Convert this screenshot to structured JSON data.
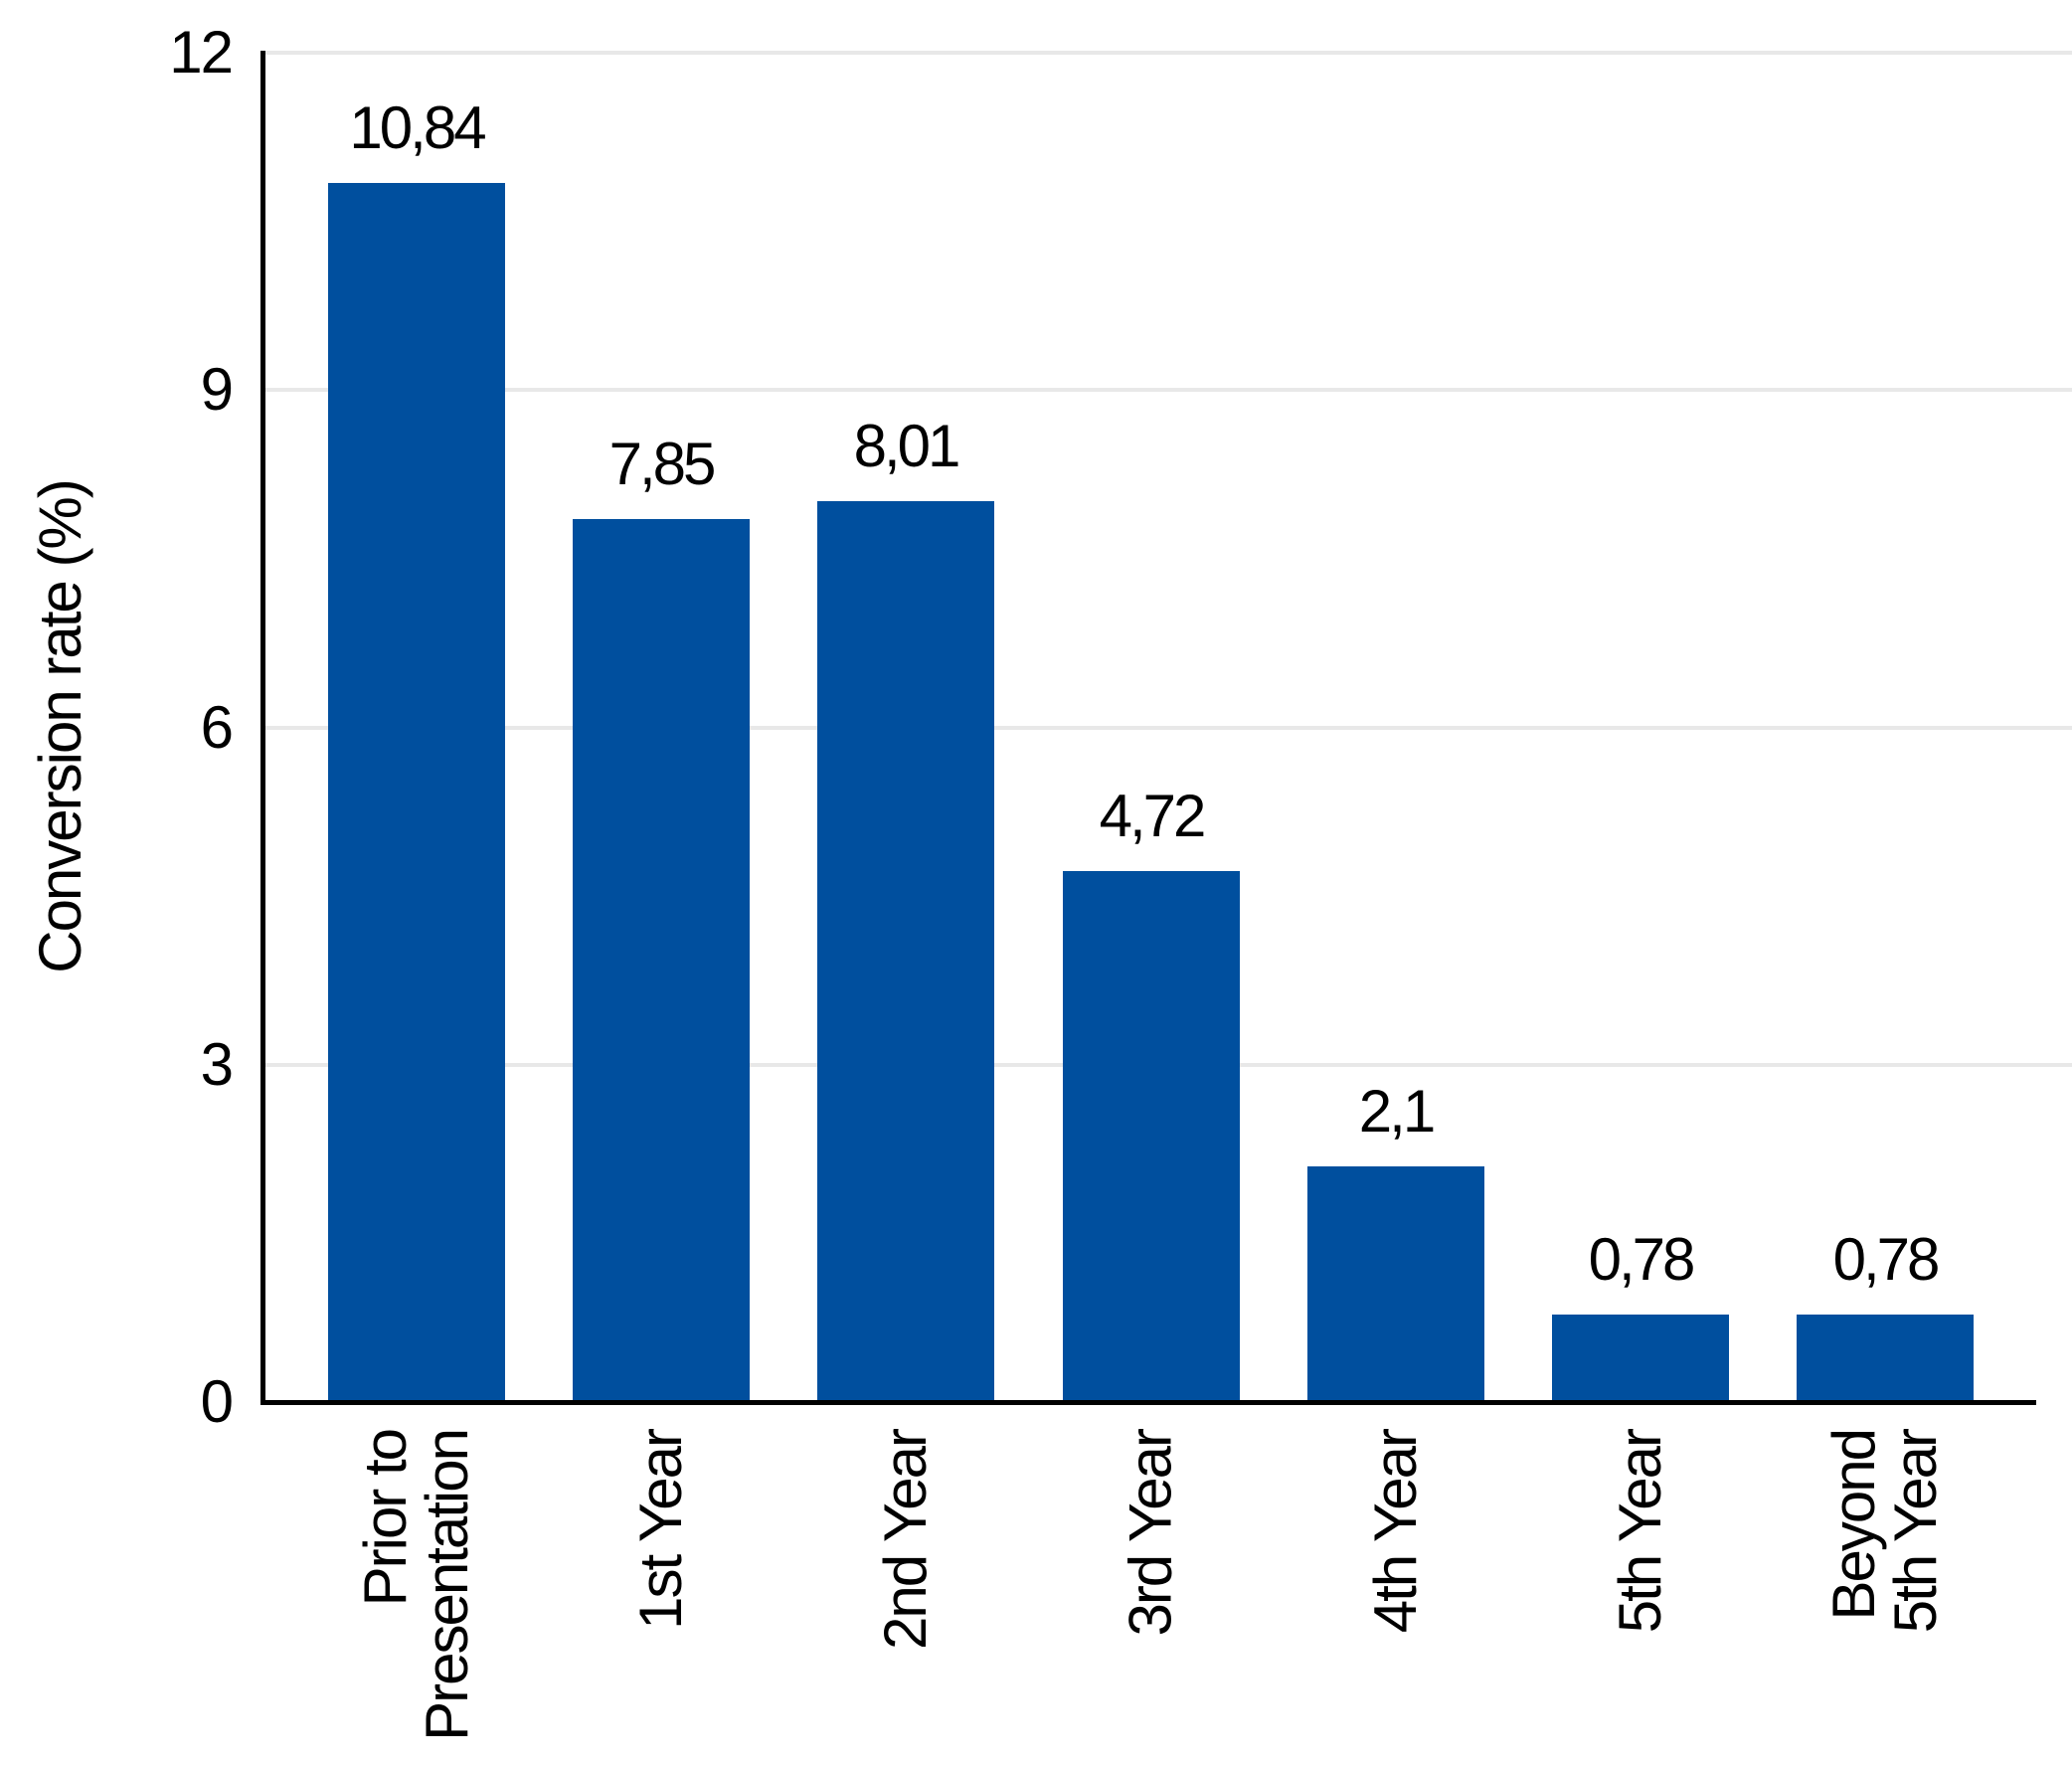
{
  "chart_data": {
    "type": "bar",
    "categories": [
      "Prior to\nPresentation",
      "1st Year",
      "2nd Year",
      "3rd Year",
      "4th Year",
      "5th Year",
      "Beyond\n5th Year"
    ],
    "values": [
      10.84,
      7.85,
      8.01,
      4.72,
      2.1,
      0.78,
      0.78
    ],
    "value_labels": [
      "10,84",
      "7,85",
      "8,01",
      "4,72",
      "2,1",
      "0,78",
      "0,78"
    ],
    "title": "",
    "xlabel": "",
    "ylabel": "Conversion rate (%)",
    "yticks": [
      0,
      3,
      6,
      9,
      12
    ],
    "ytick_labels": [
      "0",
      "3",
      "6",
      "9",
      "12"
    ],
    "ylim": [
      0,
      12
    ],
    "grid": "horizontal-only",
    "legend": "none",
    "decimal_separator": ",",
    "colors": {
      "bar": "#004F9E",
      "gridline": "#E8E8E8",
      "axis": "#000000",
      "text": "#000000",
      "background": "#FFFFFF"
    }
  }
}
